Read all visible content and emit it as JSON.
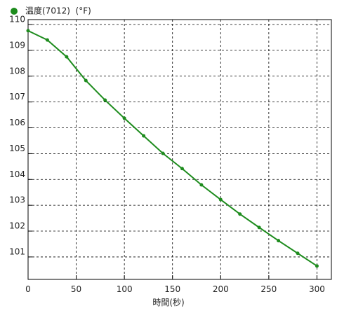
{
  "chart_data": {
    "type": "line",
    "series": [
      {
        "name": "温度(7012)  (°F)",
        "color": "#1e8c1e",
        "values": [
          109.76,
          109.4,
          108.75,
          107.83,
          107.07,
          106.37,
          105.69,
          105.01,
          104.42,
          103.79,
          103.22,
          102.66,
          102.14,
          101.63,
          101.14,
          100.65
        ]
      }
    ],
    "x": [
      0,
      20,
      40,
      60,
      80,
      100,
      120,
      140,
      160,
      180,
      200,
      220,
      240,
      260,
      280,
      300
    ],
    "xlabel": "時間(秒)",
    "xlim": [
      0,
      315
    ],
    "xticks": [
      0,
      50,
      100,
      150,
      200,
      250,
      300
    ],
    "ylim": [
      100.13,
      110.19
    ],
    "yticks": [
      101,
      102,
      103,
      104,
      105,
      106,
      107,
      108,
      109,
      110
    ],
    "grid": true
  }
}
